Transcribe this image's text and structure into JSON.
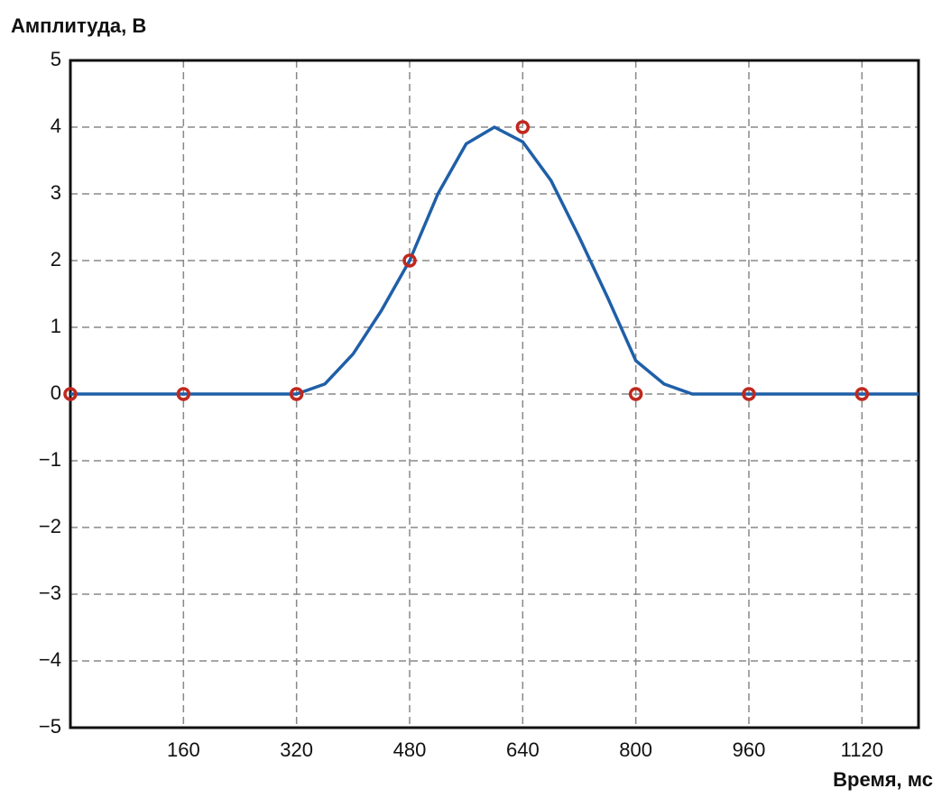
{
  "chart_data": {
    "type": "line",
    "y_label": "Амплитуда, В",
    "x_label": "Время, мс",
    "xlim": [
      0,
      1200
    ],
    "ylim": [
      -5,
      5
    ],
    "xticks": [
      160,
      320,
      480,
      640,
      800,
      960,
      1120
    ],
    "yticks": [
      {
        "value": -5,
        "label": "−5"
      },
      {
        "value": -4,
        "label": "−4"
      },
      {
        "value": -3,
        "label": "−3"
      },
      {
        "value": -2,
        "label": "−2"
      },
      {
        "value": -1,
        "label": "−1"
      },
      0,
      1,
      2,
      3,
      4,
      5
    ],
    "grid": true,
    "series": [
      {
        "color": "#1f5fa8",
        "x": [
          0,
          40,
          80,
          120,
          160,
          200,
          240,
          280,
          320,
          360,
          400,
          440,
          480,
          520,
          560,
          600,
          640,
          680,
          720,
          760,
          800,
          840,
          880,
          920,
          960,
          1000,
          1040,
          1080,
          1120,
          1160,
          1200
        ],
        "values": [
          0,
          0,
          0,
          0,
          0,
          0,
          0,
          0,
          0,
          0.15,
          0.6,
          1.25,
          2,
          3.0,
          3.75,
          4.0,
          3.78,
          3.2,
          2.35,
          1.45,
          0.5,
          0.15,
          0,
          0,
          0,
          0,
          0,
          0,
          0,
          0,
          0
        ]
      },
      {
        "color": "#c0281e",
        "markers": true,
        "x": [
          0,
          160,
          320,
          480,
          640,
          800,
          960,
          1120
        ],
        "values": [
          0,
          0,
          0,
          2,
          4,
          0,
          0,
          0
        ]
      }
    ]
  }
}
